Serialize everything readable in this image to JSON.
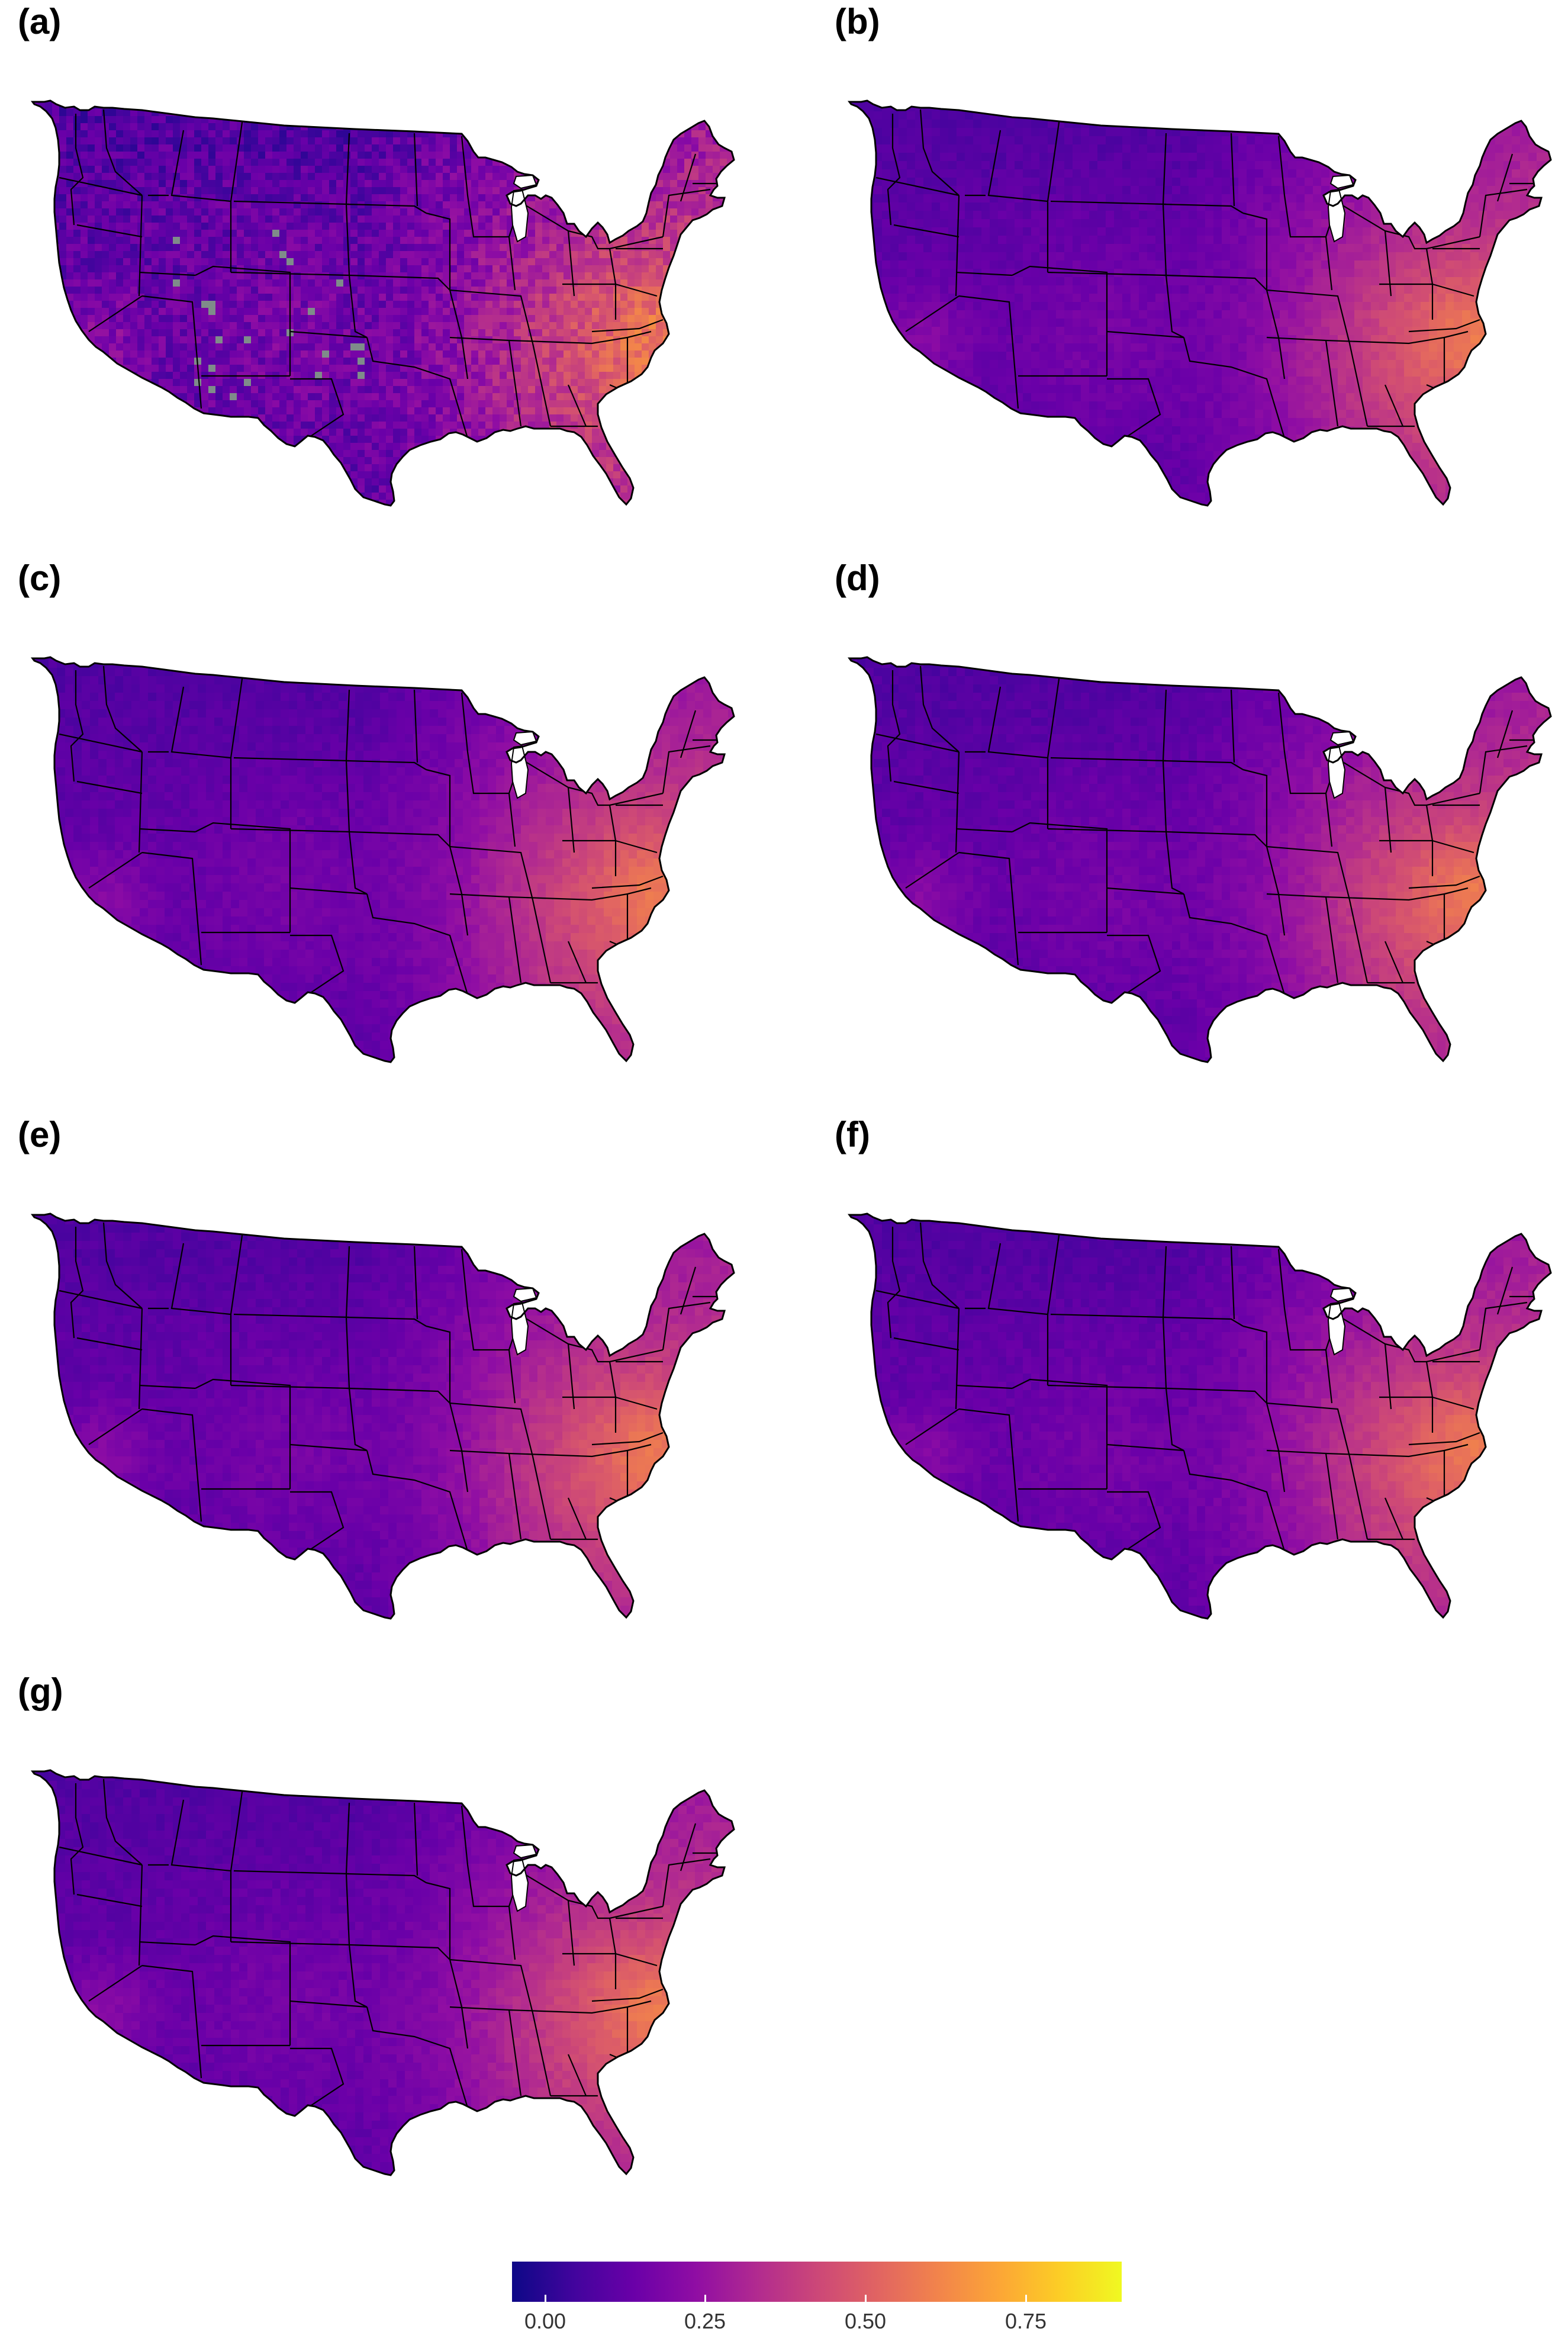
{
  "panels": [
    {
      "label": "(a)"
    },
    {
      "label": "(b)"
    },
    {
      "label": "(c)"
    },
    {
      "label": "(d)"
    },
    {
      "label": "(e)"
    },
    {
      "label": "(f)"
    },
    {
      "label": "(g)"
    }
  ],
  "colorbar": {
    "palette": "plasma",
    "range": [
      0,
      0.95
    ],
    "ticks": [
      {
        "value": 0.0,
        "label": "0.00"
      },
      {
        "value": 0.25,
        "label": "0.25"
      },
      {
        "value": 0.5,
        "label": "0.50"
      },
      {
        "value": 0.75,
        "label": "0.75"
      }
    ],
    "colors": [
      "#0d0887",
      "#6a00a8",
      "#b12a90",
      "#e16462",
      "#fca636",
      "#f0f921"
    ]
  },
  "map_regions": {
    "outline_color": "#000000",
    "missing_color": "#7f8c8a"
  }
}
